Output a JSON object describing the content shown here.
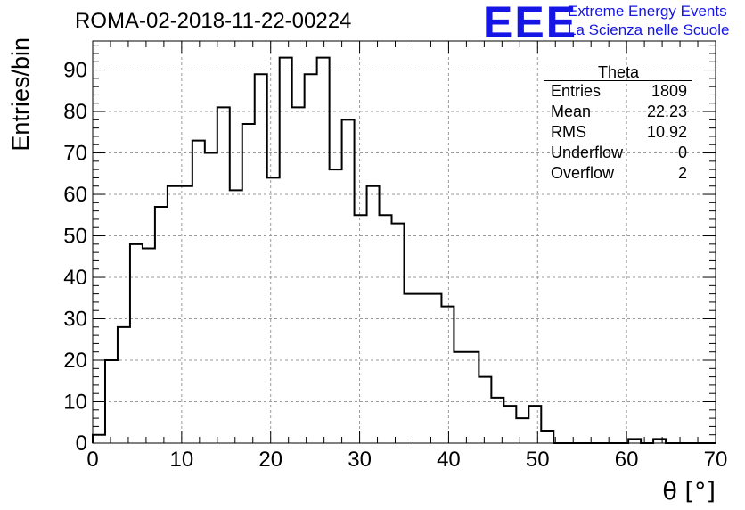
{
  "chart_data": {
    "type": "histogram",
    "title": "ROMA-02-2018-11-22-00224",
    "xlabel": "θ [°]",
    "ylabel": "Entries/bin",
    "xlim": [
      0,
      70
    ],
    "ylim": [
      0,
      97
    ],
    "xticks": [
      0,
      10,
      20,
      30,
      40,
      50,
      60,
      70
    ],
    "yticks": [
      0,
      10,
      20,
      30,
      40,
      50,
      60,
      70,
      80,
      90
    ],
    "grid": true,
    "bin_edges_start": 0,
    "bin_width": 1.4,
    "values": [
      2,
      20,
      28,
      48,
      47,
      57,
      62,
      62,
      73,
      70,
      81,
      61,
      77,
      89,
      64,
      93,
      81,
      89,
      93,
      66,
      78,
      55,
      62,
      55,
      53,
      36,
      36,
      36,
      33,
      22,
      22,
      16,
      11,
      9,
      6,
      9,
      3,
      0,
      0,
      0,
      0,
      0,
      0,
      1,
      0,
      1,
      0,
      0,
      0,
      0
    ],
    "stats_box": {
      "title": "Theta",
      "rows": [
        {
          "label": "Entries",
          "value": "1809"
        },
        {
          "label": "Mean",
          "value": "22.23"
        },
        {
          "label": "RMS",
          "value": "10.92"
        },
        {
          "label": "Underflow",
          "value": "0"
        },
        {
          "label": "Overflow",
          "value": "2"
        }
      ]
    }
  },
  "logo": {
    "mark": "EEE",
    "line1": "Extreme Energy Events",
    "line2": "La Scienza nelle Scuole"
  },
  "colors": {
    "logo": "#1515e6",
    "line": "#000000",
    "grid": "#9a9a9a"
  }
}
